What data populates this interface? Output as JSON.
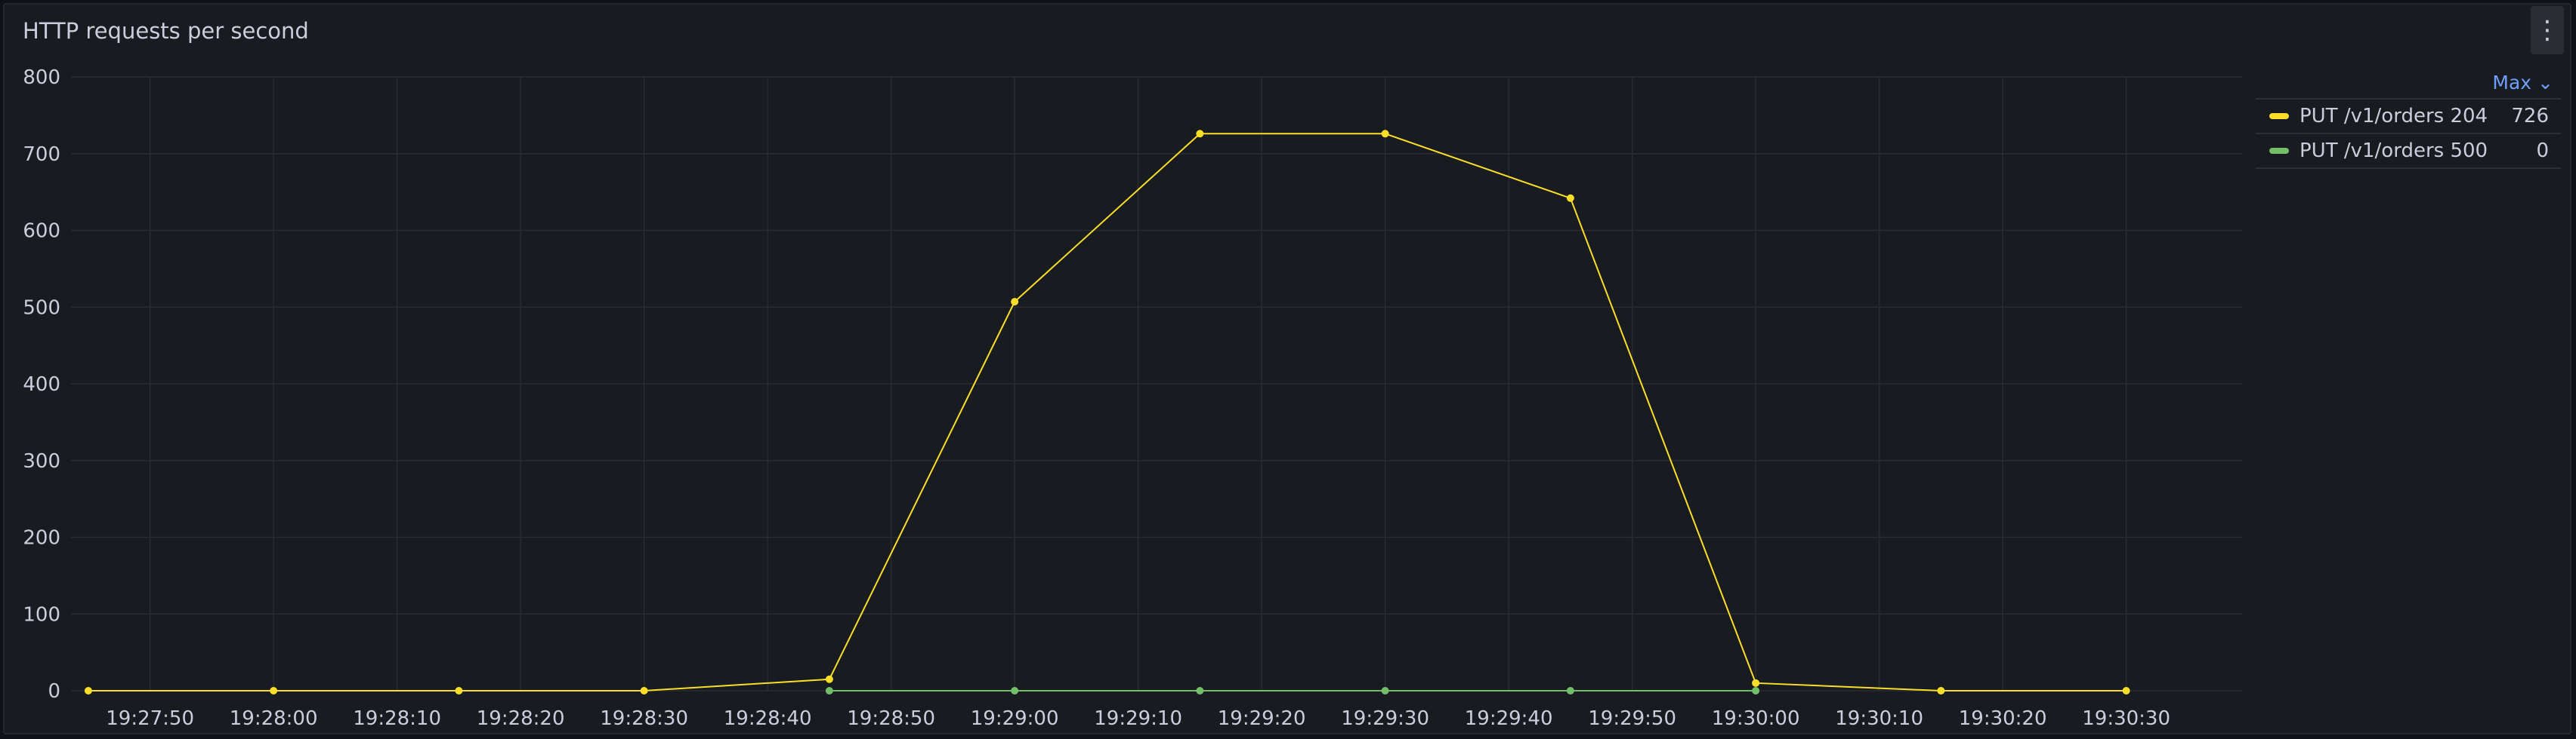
{
  "panel": {
    "title": "HTTP requests per second",
    "menu_icon": "kebab-menu-icon"
  },
  "legend": {
    "header": "Max",
    "header_icon": "chevron-down-icon",
    "items": [
      {
        "label": "PUT /v1/orders 204",
        "value": "726",
        "color": "#fade2a"
      },
      {
        "label": "PUT /v1/orders 500",
        "value": "0",
        "color": "#73bf69"
      }
    ]
  },
  "chart_data": {
    "type": "line",
    "title": "HTTP requests per second",
    "xlabel": "",
    "ylabel": "",
    "ylim": [
      0,
      800
    ],
    "y_ticks": [
      "0",
      "100",
      "200",
      "300",
      "400",
      "500",
      "600",
      "700",
      "800"
    ],
    "x_ticks": [
      "19:27:50",
      "19:28:00",
      "19:28:10",
      "19:28:20",
      "19:28:30",
      "19:28:40",
      "19:28:50",
      "19:29:00",
      "19:29:10",
      "19:29:20",
      "19:29:30",
      "19:29:40",
      "19:29:50",
      "19:30:00",
      "19:30:10",
      "19:30:20",
      "19:30:30"
    ],
    "x": [
      "19:27:45",
      "19:28:00",
      "19:28:15",
      "19:28:30",
      "19:28:45",
      "19:29:00",
      "19:29:15",
      "19:29:30",
      "19:29:45",
      "19:30:00",
      "19:30:15",
      "19:30:30"
    ],
    "series": [
      {
        "name": "PUT /v1/orders 204",
        "color": "#fade2a",
        "values": [
          0,
          0,
          0,
          0,
          15,
          507,
          726,
          726,
          642,
          10,
          0,
          0
        ]
      },
      {
        "name": "PUT /v1/orders 500",
        "color": "#73bf69",
        "values": [
          null,
          null,
          null,
          null,
          0,
          0,
          0,
          0,
          0,
          0,
          null,
          null
        ]
      }
    ],
    "grid": true,
    "legend_position": "right"
  }
}
